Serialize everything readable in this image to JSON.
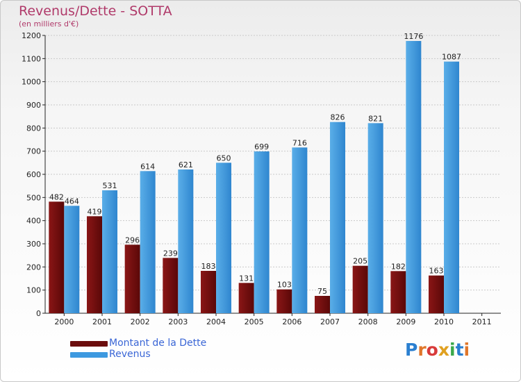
{
  "header": {
    "title": "Revenus/Dette - SOTTA",
    "subtitle": "(en milliers d'€)"
  },
  "legend": {
    "items": [
      {
        "label": "Montant de la Dette",
        "color": "#6b0d0d"
      },
      {
        "label": "Revenus",
        "color": "#3d99e0"
      }
    ]
  },
  "logo": {
    "text": "Proxiti",
    "letters": [
      {
        "ch": "P",
        "color": "#2a7fd0"
      },
      {
        "ch": "r",
        "color": "#e0762a"
      },
      {
        "ch": "o",
        "color": "#d83a3a"
      },
      {
        "ch": "x",
        "color": "#e0a020"
      },
      {
        "ch": "i",
        "color": "#3aa84a"
      },
      {
        "ch": "t",
        "color": "#2a7fd0"
      },
      {
        "ch": "i",
        "color": "#e0762a"
      }
    ]
  },
  "colors": {
    "dette": "#6b0d0d",
    "revenus": "#3d99e0",
    "grid": "#c9c9c9",
    "axis": "#222222",
    "title": "#b03a6a"
  },
  "chart_data": {
    "type": "bar",
    "title": "Revenus/Dette - SOTTA",
    "subtitle": "(en milliers d'€)",
    "categories": [
      "2000",
      "2001",
      "2002",
      "2003",
      "2004",
      "2005",
      "2006",
      "2007",
      "2008",
      "2009",
      "2010",
      "2011"
    ],
    "series": [
      {
        "name": "Montant de la Dette",
        "values": [
          482,
          419,
          296,
          239,
          183,
          131,
          103,
          75,
          205,
          182,
          163,
          null
        ]
      },
      {
        "name": "Revenus",
        "values": [
          464,
          531,
          614,
          621,
          650,
          699,
          716,
          826,
          821,
          1176,
          1087,
          null
        ]
      }
    ],
    "ylim": [
      0,
      1200
    ],
    "yticks": [
      0,
      100,
      200,
      300,
      400,
      500,
      600,
      700,
      800,
      900,
      1000,
      1100,
      1200
    ],
    "grid": true,
    "legend_position": "bottom-left"
  }
}
